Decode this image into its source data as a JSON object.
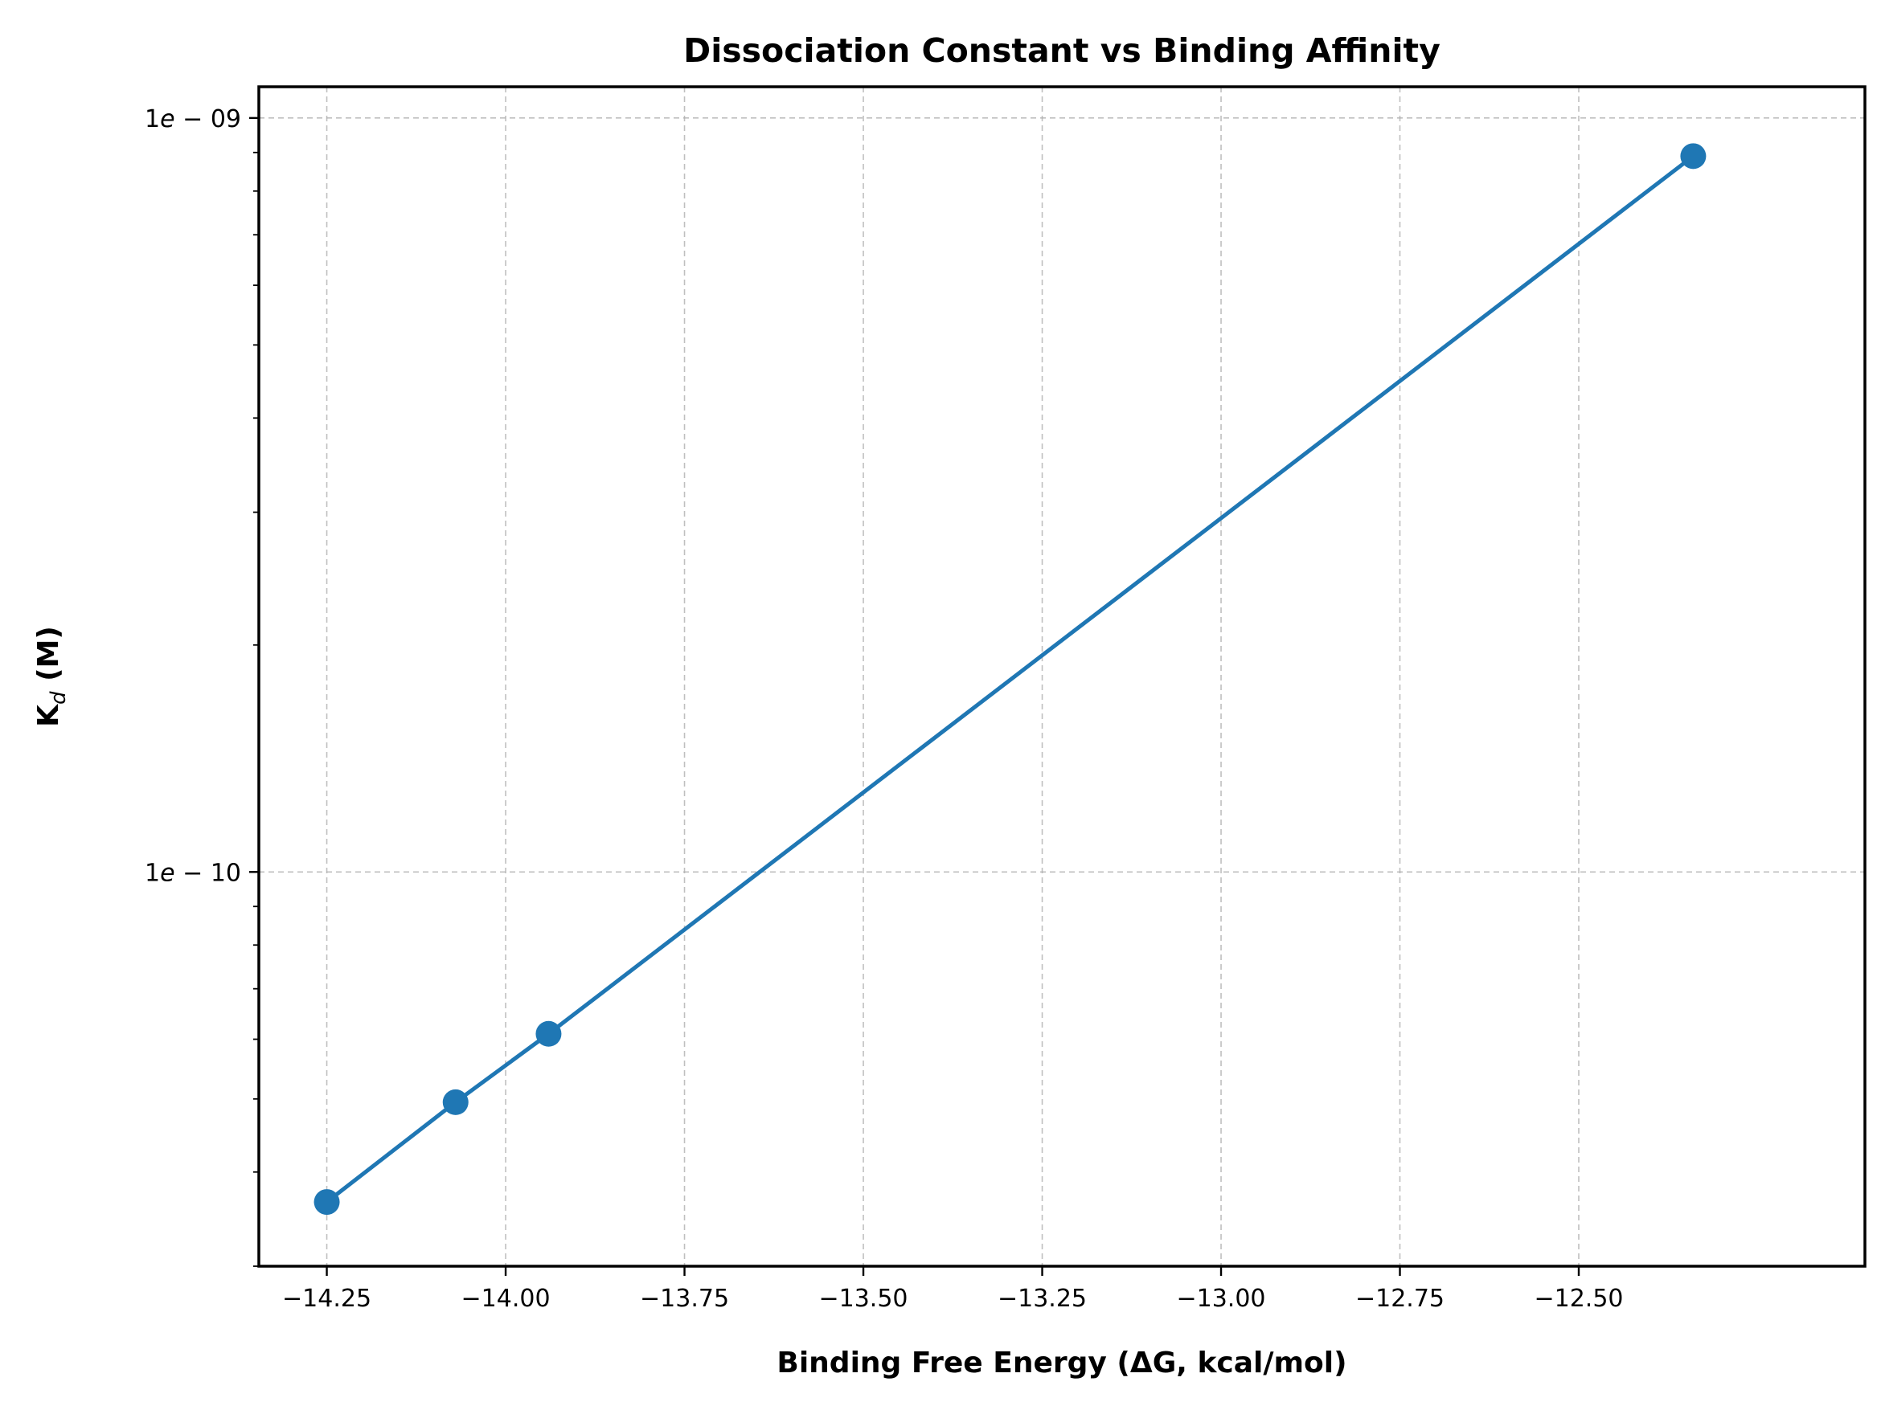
{
  "chart_data": {
    "type": "line",
    "title": "Dissociation Constant vs Binding Affinity",
    "xlabel": "Binding Free Energy (ΔG, kcal/mol)",
    "ylabel_main": "K",
    "ylabel_sub": "d",
    "ylabel_unit": " (M)",
    "yscale": "log",
    "xlim": [
      -14.345,
      -12.1
    ],
    "ylim": [
      3e-11,
      1.1e-09
    ],
    "x_ticks": [
      -14.25,
      -14.0,
      -13.75,
      -13.5,
      -13.25,
      -13.0,
      -12.75,
      -12.5
    ],
    "x_tick_labels": [
      "−14.25",
      "−14.00",
      "−13.75",
      "−13.50",
      "−13.25",
      "−13.00",
      "−12.75",
      "−12.50"
    ],
    "y_major_ticks": [
      1e-10,
      1e-09
    ],
    "y_tick_labels": [
      {
        "mant": "1",
        "base": "e",
        "exp": "−10"
      },
      {
        "mant": "1",
        "base": "e",
        "exp": "−09"
      }
    ],
    "grid": true,
    "series": [
      {
        "color": "#1f77b4",
        "marker": "circle",
        "x": [
          -14.25,
          -14.07,
          -13.94,
          -12.34
        ],
        "y": [
          3.65e-11,
          4.95e-11,
          6.1e-11,
          8.9e-10
        ]
      }
    ]
  }
}
